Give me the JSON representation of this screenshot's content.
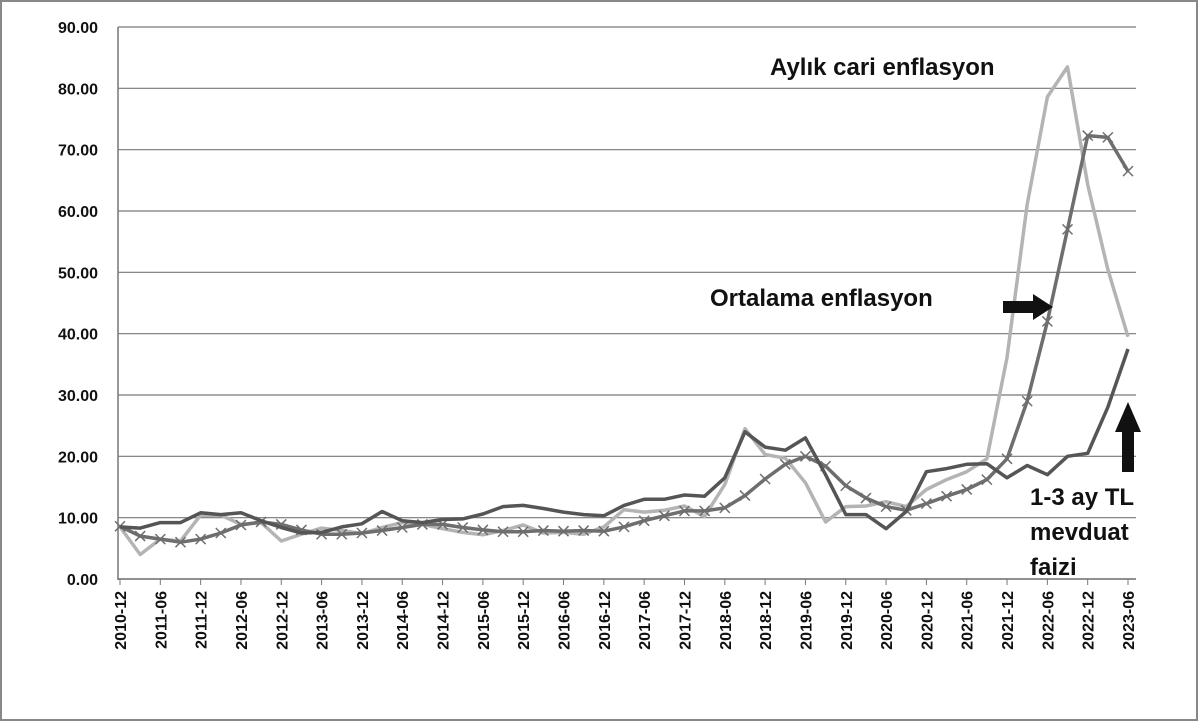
{
  "chart_data": {
    "type": "line",
    "categories": [
      "2010-12",
      null,
      "2011-06",
      null,
      "2011-12",
      null,
      "2012-06",
      null,
      "2012-12",
      null,
      "2013-06",
      null,
      "2013-12",
      null,
      "2014-06",
      null,
      "2014-12",
      null,
      "2015-06",
      null,
      "2015-12",
      null,
      "2016-06",
      null,
      "2016-12",
      null,
      "2017-06",
      null,
      "2017-12",
      null,
      "2018-06",
      null,
      "2018-12",
      null,
      "2019-06",
      null,
      "2019-12",
      null,
      "2020-06",
      null,
      "2020-12",
      null,
      "2021-06",
      null,
      "2021-12",
      null,
      "2022-06",
      null,
      "2022-12",
      null,
      "2023-06"
    ],
    "series": [
      {
        "color": "#b4b4b4",
        "markers": false,
        "values": [
          8.5,
          4.0,
          6.5,
          6.2,
          10.4,
          10.4,
          8.9,
          9.2,
          6.2,
          7.3,
          8.3,
          7.9,
          7.4,
          8.4,
          9.2,
          8.9,
          8.2,
          7.6,
          7.2,
          7.9,
          8.8,
          7.5,
          7.6,
          7.3,
          8.5,
          11.3,
          10.9,
          11.2,
          11.9,
          10.2,
          15.4,
          24.5,
          20.3,
          19.7,
          15.7,
          9.3,
          11.8,
          11.9,
          12.6,
          11.8,
          14.6,
          16.2,
          17.5,
          19.6,
          36.1,
          61.1,
          78.6,
          83.5,
          64.3,
          50.5,
          39.5
        ]
      },
      {
        "color": "#6e6e6e",
        "markers": true,
        "values": [
          8.6,
          7.0,
          6.5,
          6.0,
          6.5,
          7.5,
          8.8,
          9.3,
          8.9,
          8.0,
          7.3,
          7.3,
          7.5,
          7.9,
          8.4,
          8.9,
          8.9,
          8.4,
          8.0,
          7.7,
          7.7,
          7.9,
          7.8,
          7.9,
          7.8,
          8.5,
          9.5,
          10.3,
          11.1,
          11.1,
          11.6,
          13.6,
          16.3,
          18.7,
          20.0,
          18.4,
          15.2,
          13.2,
          11.8,
          11.2,
          12.3,
          13.5,
          14.6,
          16.2,
          19.6,
          29.0,
          42.0,
          57.0,
          72.3,
          72.0,
          66.5
        ]
      },
      {
        "color": "#555555",
        "markers": false,
        "values": [
          8.5,
          8.3,
          9.2,
          9.2,
          10.8,
          10.5,
          10.8,
          9.5,
          8.4,
          7.5,
          7.6,
          8.5,
          9.0,
          11.0,
          9.5,
          9.2,
          9.7,
          9.8,
          10.6,
          11.8,
          12.0,
          11.5,
          10.9,
          10.5,
          10.3,
          12.0,
          13.0,
          13.0,
          13.7,
          13.5,
          16.5,
          24.0,
          21.5,
          21.0,
          23.0,
          17.0,
          10.5,
          10.5,
          8.2,
          11.0,
          17.5,
          18.0,
          18.7,
          18.8,
          16.5,
          18.5,
          17.0,
          20.0,
          20.5,
          28.0,
          37.5
        ]
      }
    ],
    "ylim": [
      0,
      90
    ],
    "yticks": [
      {
        "value": 0,
        "label": "0.00"
      },
      {
        "value": 10,
        "label": "10.00"
      },
      {
        "value": 20,
        "label": "20.00"
      },
      {
        "value": 30,
        "label": "30.00"
      },
      {
        "value": 40,
        "label": "40.00"
      },
      {
        "value": 50,
        "label": "50.00"
      },
      {
        "value": 60,
        "label": "60.00"
      },
      {
        "value": 70,
        "label": "70.00"
      },
      {
        "value": 80,
        "label": "80.00"
      },
      {
        "value": 90,
        "label": "90.00"
      }
    ],
    "grid": true,
    "annotations": [
      {
        "lines": [
          "Aylık cari enflasyon"
        ]
      },
      {
        "lines": [
          "Ortalama enflasyon"
        ]
      },
      {
        "lines": [
          "1-3 ay TL",
          "mevduat",
          "faizi"
        ]
      }
    ]
  }
}
